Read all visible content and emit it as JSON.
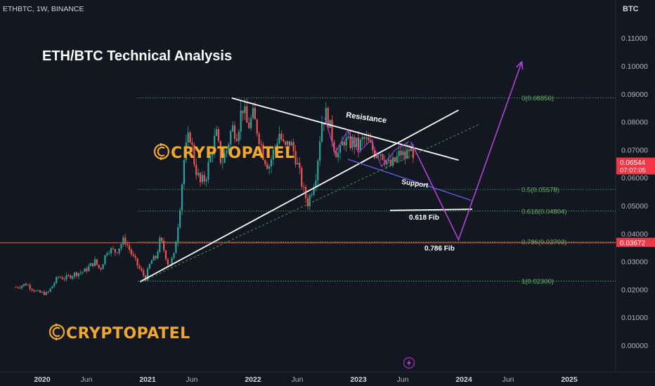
{
  "header": {
    "symbol": "ETHBTC, 1W, BINANCE",
    "currency": "BTC"
  },
  "watermark": {
    "brand": "CRYPTOPATEL",
    "icon": "c-coin-icon",
    "color": "#f0a82c"
  },
  "footer_icon": "lightning-icon",
  "colors": {
    "background": "#131722",
    "up_candle": "#26a69a",
    "down_candle": "#ef5350",
    "trendline": "#ffffff",
    "fib_line": "#4caf50",
    "projection": "#b044d8",
    "support_line": "#5b5bd6",
    "key_level": "#f23645"
  },
  "chart_data": {
    "type": "candlestick",
    "title": "ETH/BTC Technical Analysis",
    "x_axis": {
      "ticks": [
        "2020",
        "Jun",
        "2021",
        "Jun",
        "2022",
        "Jun",
        "2023",
        "Jun",
        "2024",
        "Jun",
        "2025"
      ]
    },
    "y_axis": {
      "unit": "BTC",
      "range": [
        -0.002,
        0.118
      ],
      "ticks": [
        "0.11000",
        "0.10000",
        "0.09000",
        "0.08000",
        "0.07000",
        "0.06000",
        "0.05000",
        "0.04000",
        "0.03000",
        "0.02000",
        "0.01000",
        "0.00000"
      ]
    },
    "price_labels": [
      {
        "value": 0.06544,
        "text": "0.06544",
        "countdown": "07:07:05",
        "color": "#f23645"
      },
      {
        "value": 0.03672,
        "text": "0.03672",
        "color": "#f23645"
      }
    ],
    "key_level": 0.03672,
    "fib_levels": [
      {
        "ratio": "0",
        "value": 0.08856,
        "label": "0(0.08856)"
      },
      {
        "ratio": "0.5",
        "value": 0.05578,
        "label": "0.5(0.05578)"
      },
      {
        "ratio": "0.618",
        "value": 0.04804,
        "label": "0.618(0.04804)"
      },
      {
        "ratio": "0.786",
        "value": 0.03703,
        "label": "0.786(0.03703)"
      },
      {
        "ratio": "1",
        "value": 0.023,
        "label": "1(0.02300)"
      }
    ],
    "annotations": {
      "resistance": "Resistance",
      "support": "Support",
      "fib_618": "0.618 Fib",
      "fib_786": "0.786 Fib"
    },
    "price_path": [
      [
        2019.75,
        0.0208
      ],
      [
        2019.85,
        0.022
      ],
      [
        2019.95,
        0.019
      ],
      [
        2020.05,
        0.0185
      ],
      [
        2020.15,
        0.0245
      ],
      [
        2020.22,
        0.024
      ],
      [
        2020.3,
        0.0255
      ],
      [
        2020.4,
        0.0265
      ],
      [
        2020.5,
        0.03
      ],
      [
        2020.55,
        0.027
      ],
      [
        2020.62,
        0.0345
      ],
      [
        2020.7,
        0.0335
      ],
      [
        2020.78,
        0.038
      ],
      [
        2020.85,
        0.0325
      ],
      [
        2020.92,
        0.0275
      ],
      [
        2020.98,
        0.024
      ],
      [
        2021.03,
        0.03
      ],
      [
        2021.08,
        0.0315
      ],
      [
        2021.12,
        0.038
      ],
      [
        2021.16,
        0.0335
      ],
      [
        2021.2,
        0.0285
      ],
      [
        2021.25,
        0.032
      ],
      [
        2021.3,
        0.047
      ],
      [
        2021.35,
        0.068
      ],
      [
        2021.4,
        0.076
      ],
      [
        2021.45,
        0.064
      ],
      [
        2021.5,
        0.058
      ],
      [
        2021.55,
        0.06
      ],
      [
        2021.6,
        0.068
      ],
      [
        2021.65,
        0.076
      ],
      [
        2021.7,
        0.065
      ],
      [
        2021.75,
        0.07
      ],
      [
        2021.8,
        0.078
      ],
      [
        2021.85,
        0.076
      ],
      [
        2021.9,
        0.086
      ],
      [
        2021.95,
        0.078
      ],
      [
        2022.0,
        0.082
      ],
      [
        2022.05,
        0.076
      ],
      [
        2022.1,
        0.068
      ],
      [
        2022.15,
        0.064
      ],
      [
        2022.2,
        0.07
      ],
      [
        2022.25,
        0.076
      ],
      [
        2022.3,
        0.07
      ],
      [
        2022.35,
        0.073
      ],
      [
        2022.4,
        0.068
      ],
      [
        2022.45,
        0.06
      ],
      [
        2022.48,
        0.055
      ],
      [
        2022.52,
        0.051
      ],
      [
        2022.56,
        0.056
      ],
      [
        2022.6,
        0.062
      ],
      [
        2022.65,
        0.08
      ],
      [
        2022.7,
        0.083
      ],
      [
        2022.74,
        0.076
      ],
      [
        2022.78,
        0.07
      ],
      [
        2022.82,
        0.068
      ],
      [
        2022.86,
        0.074
      ],
      [
        2022.9,
        0.072
      ],
      [
        2022.95,
        0.073
      ],
      [
        2023.0,
        0.071
      ],
      [
        2023.05,
        0.074
      ],
      [
        2023.1,
        0.072
      ],
      [
        2023.15,
        0.069
      ],
      [
        2023.2,
        0.07
      ],
      [
        2023.25,
        0.067
      ],
      [
        2023.3,
        0.064
      ],
      [
        2023.35,
        0.066
      ],
      [
        2023.4,
        0.069
      ],
      [
        2023.45,
        0.067
      ],
      [
        2023.48,
        0.072
      ],
      [
        2023.52,
        0.0654
      ]
    ],
    "trendlines": [
      {
        "name": "resistance",
        "from": [
          2021.8,
          0.0885
        ],
        "to": [
          2023.95,
          0.0663
        ]
      },
      {
        "name": "uptrend",
        "from": [
          2020.93,
          0.0228
        ],
        "to": [
          2023.95,
          0.0842
        ]
      },
      {
        "name": "dotted-uptrend",
        "from": [
          2020.93,
          0.0225
        ],
        "to": [
          2024.15,
          0.0792
        ]
      },
      {
        "name": "support",
        "from": [
          2022.9,
          0.0666
        ],
        "to": [
          2024.07,
          0.0519
        ]
      },
      {
        "name": "fib-618-line",
        "from": [
          2023.3,
          0.0483
        ],
        "to": [
          2024.08,
          0.0487
        ]
      }
    ],
    "projection": [
      [
        2023.5,
        0.0728
      ],
      [
        2023.95,
        0.0378
      ],
      [
        2024.55,
        0.1015
      ]
    ],
    "time_axis": {
      "x_start": 2019.75,
      "x_end": 2025.5
    }
  }
}
